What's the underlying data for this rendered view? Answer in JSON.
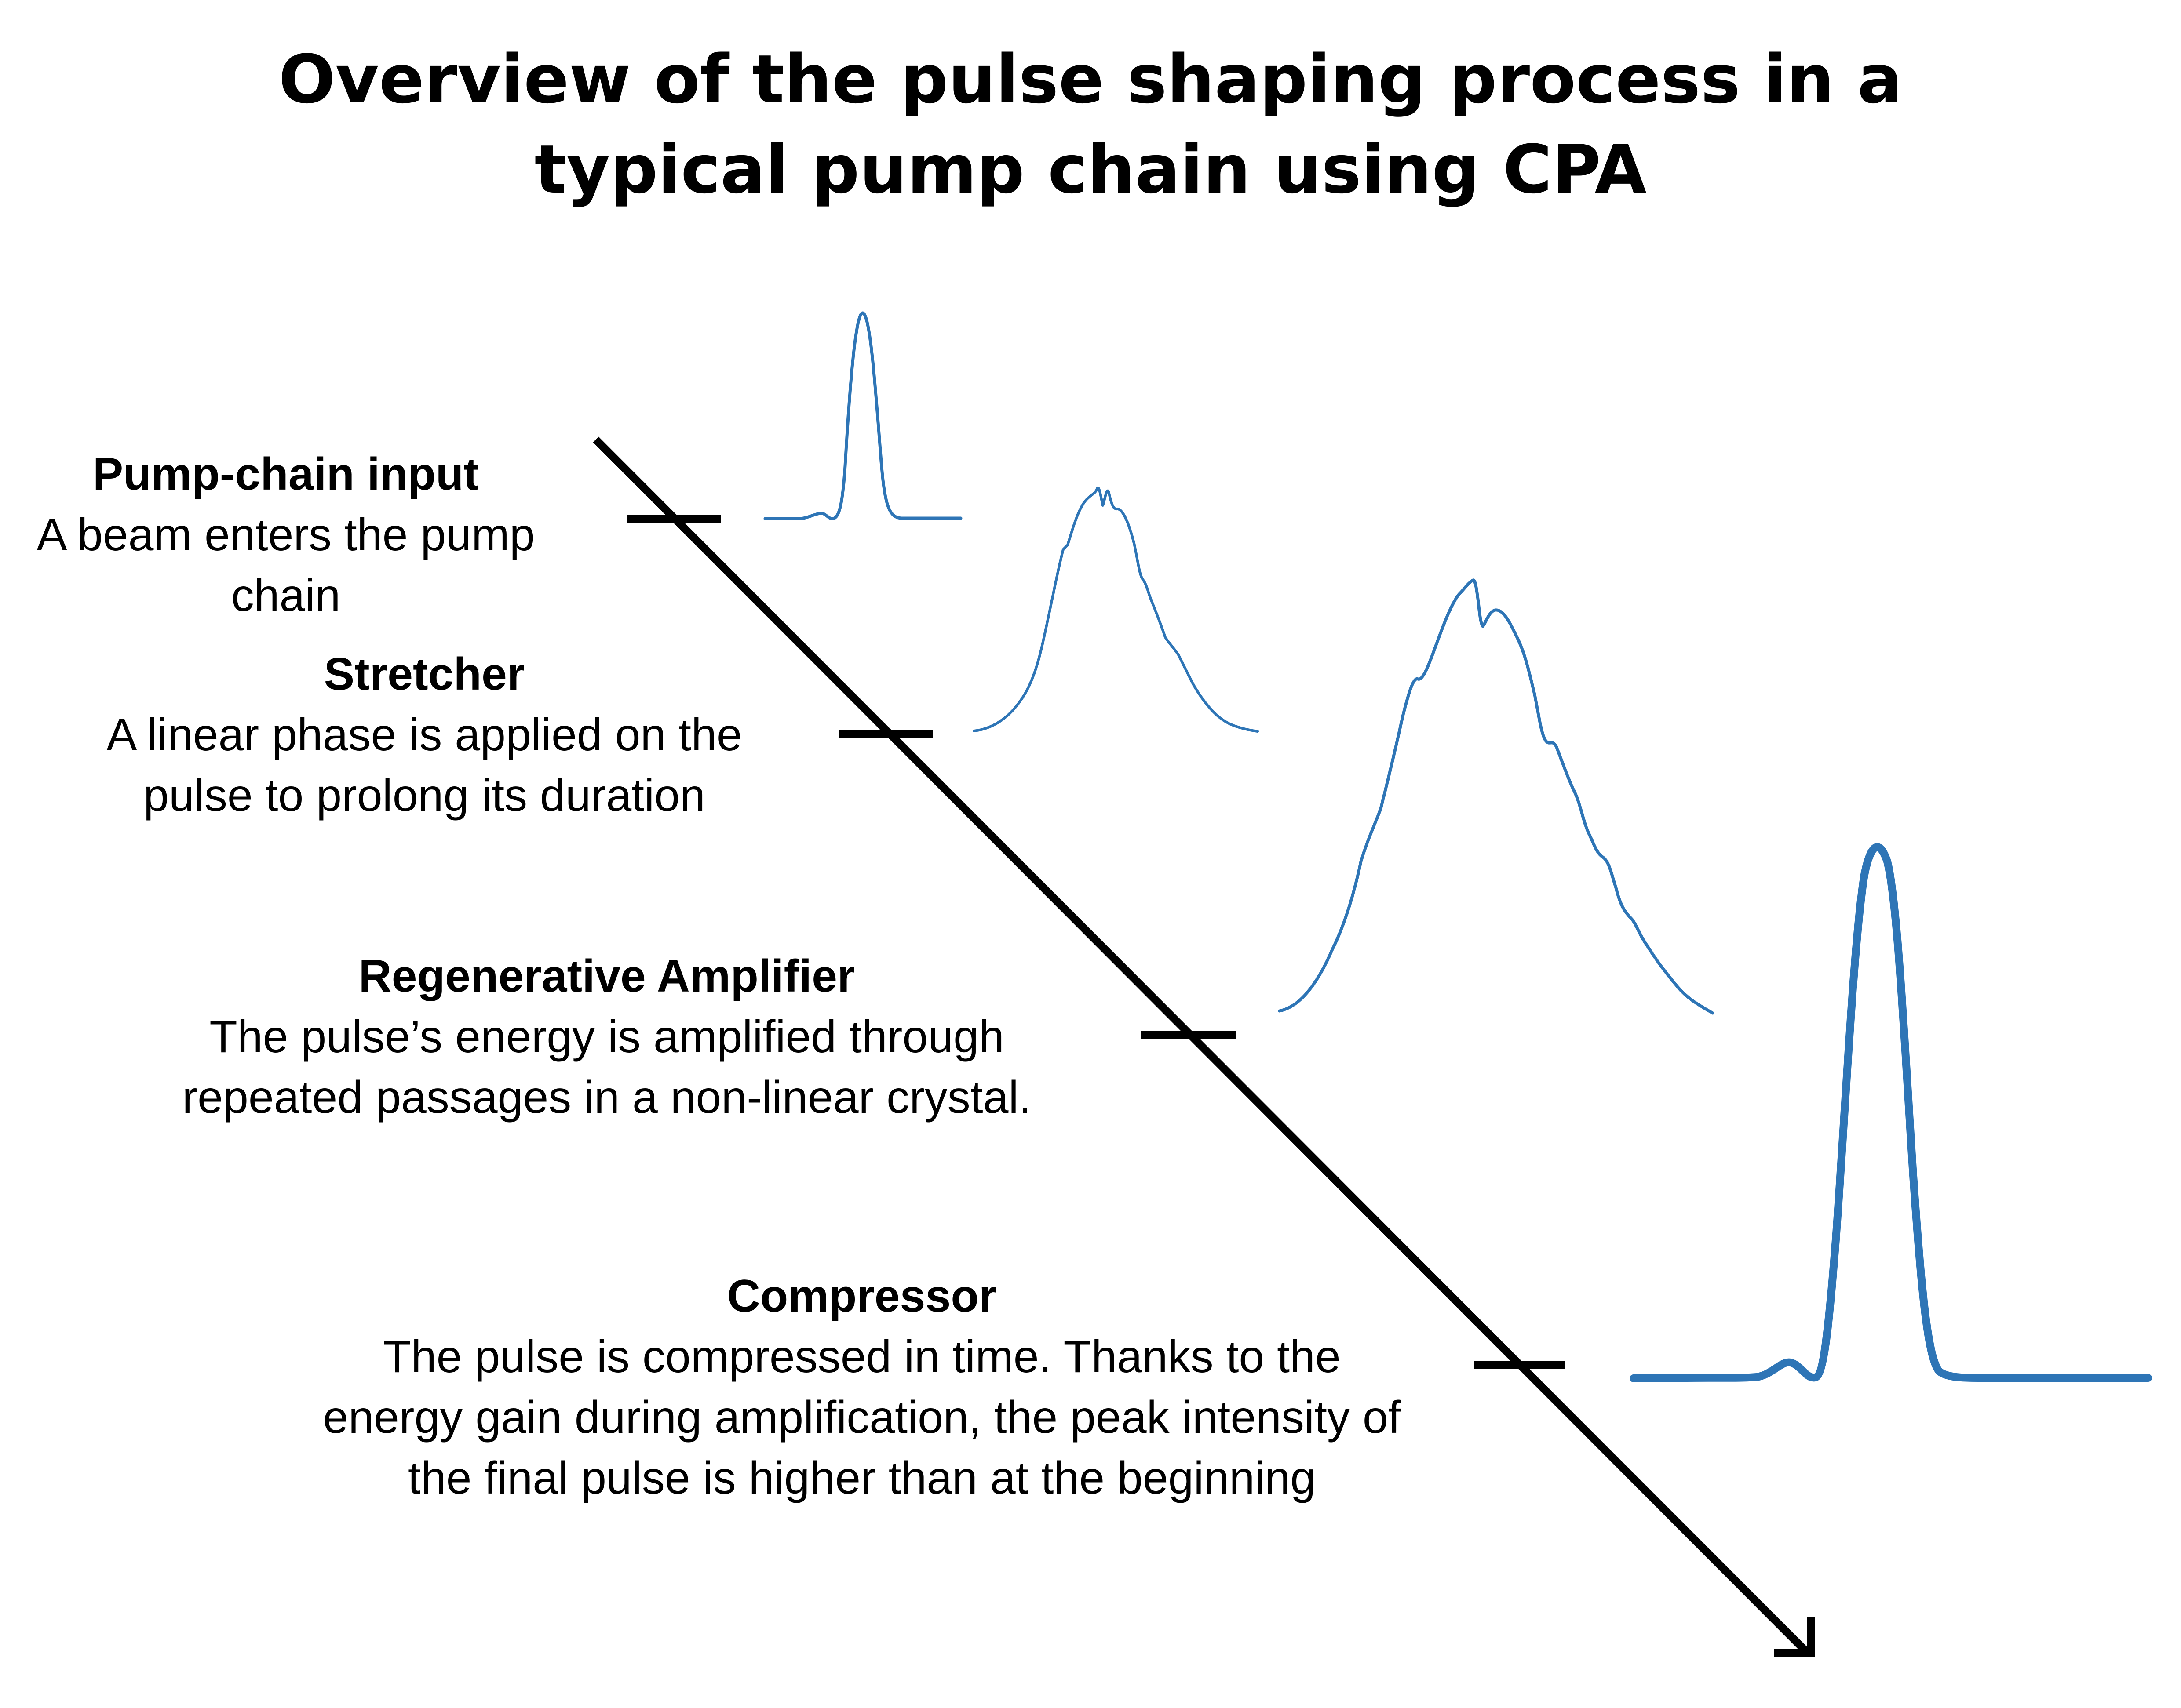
{
  "title": {
    "line1": "Overview of the pulse shaping process in a",
    "line2": "typical pump chain using CPA"
  },
  "stages": [
    {
      "name": "Pump-chain input",
      "description": [
        "A beam enters the pump",
        "chain"
      ]
    },
    {
      "name": "Stretcher",
      "description": [
        "A linear phase is applied on the",
        "pulse to prolong its duration"
      ]
    },
    {
      "name": "Regenerative Amplifier",
      "description": [
        "The pulse’s energy is amplified through",
        "repeated passages in a non-linear crystal."
      ]
    },
    {
      "name": "Compressor",
      "description": [
        "The pulse is compressed in time. Thanks to the",
        "energy gain during amplification, the peak intensity of",
        "the final pulse is higher than at the beginning"
      ]
    }
  ],
  "colors": {
    "pulse": "#2e75b6",
    "arrow": "#000000",
    "text": "#000000",
    "background": "#ffffff"
  }
}
